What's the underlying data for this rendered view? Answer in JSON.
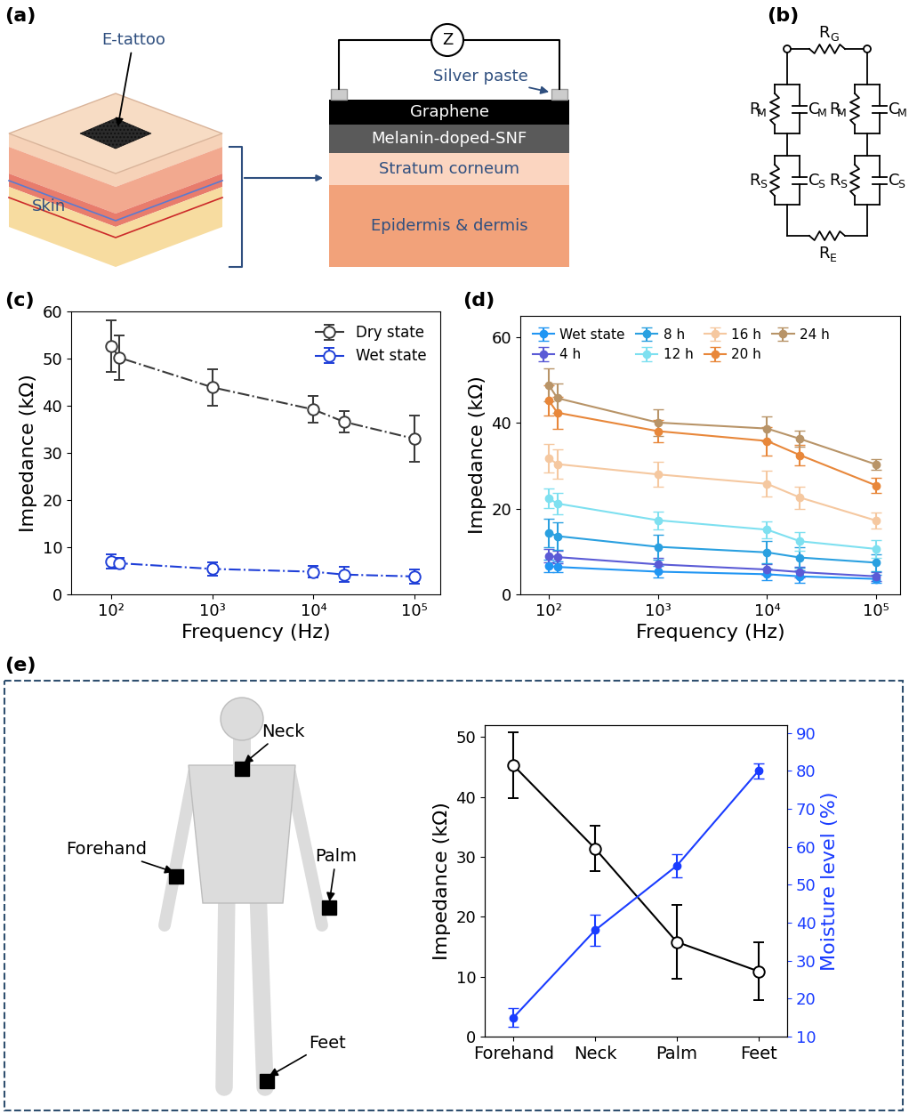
{
  "diagrams": {
    "panel_a": {
      "panel": "(a)",
      "tattoo_label": "E-tattoo",
      "skin_label": "Skin",
      "meter": "Z",
      "contact": "Silver paste",
      "layers": [
        "Graphene",
        "Melanin-doped-SNF",
        "Stratum corneum",
        "Epidermis & dermis"
      ]
    },
    "panel_b": {
      "panel": "(b)",
      "top": {
        "main": "R",
        "sub": "G"
      },
      "bottom": {
        "main": "R",
        "sub": "E"
      },
      "upper": {
        "resistor": {
          "main": "R",
          "sub": "M"
        },
        "capacitor": {
          "main": "C",
          "sub": "M"
        }
      },
      "lower": {
        "resistor": {
          "main": "R",
          "sub": "S"
        },
        "capacitor": {
          "main": "C",
          "sub": "S"
        }
      }
    },
    "body_sites": [
      "Neck",
      "Forehand",
      "Palm",
      "Feet"
    ]
  },
  "chart_data": [
    {
      "panel": "(c)",
      "type": "line",
      "x": [
        100,
        120,
        1000,
        10000,
        20000,
        100000
      ],
      "xlabel": "Frequency (Hz)",
      "ylabel": "Impedance (kΩ)",
      "log": "x",
      "xlim": [
        40,
        180000
      ],
      "xticks": [
        {
          "value": 100,
          "label": "10²"
        },
        {
          "value": 1000,
          "label": "10³"
        },
        {
          "value": 10000,
          "label": "10⁴"
        },
        {
          "value": 100000,
          "label": "10⁵"
        }
      ],
      "ylim": [
        0,
        60
      ],
      "yticks": [
        0,
        10,
        20,
        30,
        40,
        50,
        60
      ],
      "legend": "upper right",
      "series": [
        {
          "name": "Dry state",
          "color": "#3a3a3a",
          "marker": "open_circle",
          "line_style": "dashdot",
          "values": [
            52.6,
            50.2,
            43.9,
            39.2,
            36.6,
            33.0
          ],
          "errors": [
            5.5,
            4.8,
            3.9,
            2.8,
            2.2,
            4.9
          ]
        },
        {
          "name": "Wet state",
          "color": "#1f3fd8",
          "marker": "open_circle",
          "line_style": "dashdot",
          "values": [
            7.0,
            6.6,
            5.4,
            4.8,
            4.2,
            3.8
          ],
          "errors": [
            1.5,
            1.2,
            1.4,
            1.3,
            1.6,
            1.5
          ]
        }
      ]
    },
    {
      "panel": "(d)",
      "type": "line",
      "x": [
        100,
        120,
        1000,
        10000,
        20000,
        100000
      ],
      "xlabel": "Frequency (Hz)",
      "ylabel": "Impedance (kΩ)",
      "log": "x",
      "xlim": [
        55,
        165000
      ],
      "xticks": [
        {
          "value": 100,
          "label": "10²"
        },
        {
          "value": 1000,
          "label": "10³"
        },
        {
          "value": 10000,
          "label": "10⁴"
        },
        {
          "value": 100000,
          "label": "10⁵"
        }
      ],
      "ylim": [
        0,
        65
      ],
      "yticks": [
        0,
        20,
        40,
        60
      ],
      "legend": "upper left",
      "series": [
        {
          "name": "Wet state",
          "color": "#2196f3",
          "marker": "circle",
          "line_style": "solid",
          "values": [
            6.6,
            6.4,
            5.3,
            4.7,
            4.2,
            3.6
          ],
          "errors": [
            1.4,
            1.3,
            1.4,
            1.3,
            1.5,
            1.0
          ]
        },
        {
          "name": "4 h",
          "color": "#5b5bd6",
          "marker": "circle",
          "line_style": "solid",
          "values": [
            9.0,
            8.7,
            7.0,
            5.8,
            5.2,
            4.2
          ],
          "errors": [
            1.5,
            1.4,
            1.5,
            1.3,
            1.2,
            1.0
          ]
        },
        {
          "name": "8 h",
          "color": "#2aa0e0",
          "marker": "circle",
          "line_style": "solid",
          "values": [
            14.4,
            13.6,
            11.1,
            9.8,
            8.6,
            7.4
          ],
          "errors": [
            3.3,
            3.2,
            2.9,
            2.6,
            2.4,
            1.9
          ]
        },
        {
          "name": "12 h",
          "color": "#7ee0f0",
          "marker": "circle",
          "line_style": "solid",
          "values": [
            22.4,
            21.2,
            17.3,
            15.1,
            12.4,
            10.6
          ],
          "errors": [
            2.3,
            2.5,
            2.1,
            2.0,
            2.2,
            2.0
          ]
        },
        {
          "name": "16 h",
          "color": "#f5c8a0",
          "marker": "circle",
          "line_style": "solid",
          "values": [
            31.8,
            30.4,
            28.0,
            25.8,
            22.6,
            17.2
          ],
          "errors": [
            3.3,
            3.4,
            2.9,
            3.0,
            2.6,
            1.9
          ]
        },
        {
          "name": "20 h",
          "color": "#e8873a",
          "marker": "circle",
          "line_style": "solid",
          "values": [
            45.3,
            42.4,
            38.1,
            35.8,
            32.5,
            25.4
          ],
          "errors": [
            3.6,
            3.7,
            2.6,
            3.3,
            2.3,
            1.8
          ]
        },
        {
          "name": "24 h",
          "color": "#b89468",
          "marker": "circle",
          "line_style": "solid",
          "values": [
            48.9,
            45.8,
            40.1,
            38.7,
            36.3,
            30.3
          ],
          "errors": [
            3.8,
            3.5,
            3.1,
            2.9,
            1.9,
            1.2
          ]
        }
      ]
    },
    {
      "panel": "(e)",
      "type": "line",
      "categories": [
        "Forehand",
        "Neck",
        "Palm",
        "Feet"
      ],
      "ylabel": "Impedance (kΩ)",
      "y2label": "Moisture level (%)",
      "ylim": [
        0,
        52
      ],
      "yticks": [
        0,
        10,
        20,
        30,
        40,
        50
      ],
      "y2lim": [
        10,
        92
      ],
      "y2ticks": [
        10,
        20,
        30,
        40,
        50,
        60,
        70,
        80,
        90
      ],
      "series": [
        {
          "color": "#000000",
          "marker": "open_circle",
          "line_style": "solid",
          "values": [
            45.3,
            31.4,
            15.8,
            10.9
          ],
          "errors": [
            5.5,
            3.8,
            6.2,
            4.8
          ]
        },
        {
          "color": "#1a3cff",
          "marker": "circle",
          "line_style": "solid",
          "axis": "y2",
          "values": [
            15,
            38,
            55,
            80
          ],
          "errors": [
            2.5,
            4,
            3,
            2
          ]
        }
      ]
    }
  ]
}
